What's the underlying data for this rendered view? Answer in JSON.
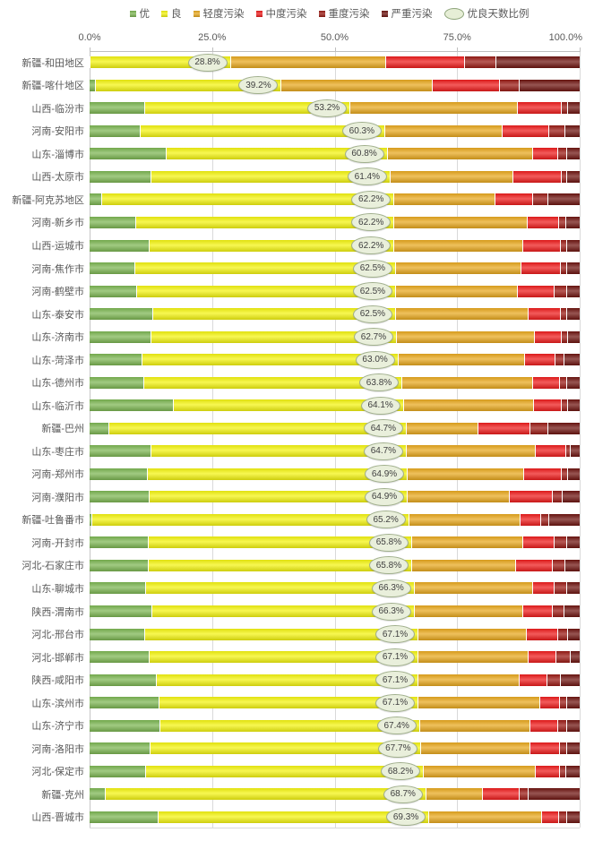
{
  "colors": {
    "excellent": "#7cb652",
    "good": "#f4f410",
    "light_pollution": "#e8a81e",
    "moderate_pollution": "#ee1c1c",
    "heavy_pollution": "#9a1a14",
    "severe_pollution": "#6e1410",
    "bubble_fill": "#e9efdb",
    "bubble_border": "#a0af8c",
    "gridline": "#d9d9d9",
    "text": "#595959"
  },
  "legend": {
    "items": [
      {
        "label": "优",
        "key": "excellent"
      },
      {
        "label": "良",
        "key": "good"
      },
      {
        "label": "轻度污染",
        "key": "light_pollution"
      },
      {
        "label": "中度污染",
        "key": "moderate_pollution"
      },
      {
        "label": "重度污染",
        "key": "heavy_pollution"
      },
      {
        "label": "严重污染",
        "key": "severe_pollution"
      }
    ],
    "ratio_label": "优良天数比例"
  },
  "chart_data": {
    "type": "bar",
    "stacked": true,
    "orientation": "horizontal",
    "unit": "%",
    "xlim": [
      0,
      100
    ],
    "x_ticks": [
      {
        "value": 0,
        "label": "0.0%"
      },
      {
        "value": 25,
        "label": "25.0%"
      },
      {
        "value": 50,
        "label": "50.0%"
      },
      {
        "value": 75,
        "label": "75.0%"
      },
      {
        "value": 100,
        "label": "100.0%"
      }
    ],
    "grid": true,
    "legend_position": "top",
    "categories": [
      "新疆-和田地区",
      "新疆-喀什地区",
      "山西-临汾市",
      "河南-安阳市",
      "山东-淄博市",
      "山西-太原市",
      "新疆-阿克苏地区",
      "河南-新乡市",
      "山西-运城市",
      "河南-焦作市",
      "河南-鹤壁市",
      "山东-泰安市",
      "山东-济南市",
      "山东-菏泽市",
      "山东-德州市",
      "山东-临沂市",
      "新疆-巴州",
      "山东-枣庄市",
      "河南-郑州市",
      "河南-濮阳市",
      "新疆-吐鲁番市",
      "河南-开封市",
      "河北-石家庄市",
      "山东-聊城市",
      "陕西-渭南市",
      "河北-邢台市",
      "河北-邯郸市",
      "陕西-咸阳市",
      "山东-滨州市",
      "山东-济宁市",
      "河南-洛阳市",
      "河北-保定市",
      "新疆-克州",
      "山西-晋城市"
    ],
    "series": [
      {
        "name": "优",
        "key": "excellent",
        "values": [
          0.2,
          1.2,
          11.4,
          10.5,
          15.8,
          12.7,
          2.6,
          9.5,
          12.2,
          9.3,
          9.7,
          13.0,
          12.6,
          10.8,
          11.2,
          17.2,
          4.0,
          12.7,
          11.8,
          12.2,
          0.5,
          12.1,
          12.1,
          11.6,
          12.8,
          11.4,
          12.3,
          13.8,
          14.3,
          14.5,
          12.5,
          11.6,
          3.3,
          14.0
        ]
      },
      {
        "name": "良",
        "key": "good",
        "values": [
          28.6,
          38.0,
          41.8,
          49.8,
          45.0,
          48.7,
          59.6,
          52.7,
          50.0,
          53.2,
          52.8,
          49.5,
          50.1,
          52.2,
          52.6,
          46.9,
          60.7,
          52.0,
          53.1,
          52.7,
          64.7,
          53.7,
          53.7,
          54.7,
          53.5,
          55.7,
          54.8,
          53.3,
          52.8,
          52.9,
          55.2,
          56.6,
          65.4,
          55.3
        ]
      },
      {
        "name": "轻度污染",
        "key": "light_pollution",
        "values": [
          31.7,
          30.8,
          34.1,
          24.0,
          29.7,
          25.1,
          20.7,
          27.2,
          26.2,
          25.7,
          24.8,
          27.0,
          28.1,
          25.8,
          26.7,
          26.5,
          14.6,
          26.4,
          23.8,
          20.8,
          22.7,
          22.7,
          21.3,
          24.2,
          22.2,
          22.2,
          22.4,
          20.7,
          24.8,
          22.6,
          22.3,
          22.9,
          11.6,
          23.0
        ]
      },
      {
        "name": "中度污染",
        "key": "moderate_pollution",
        "values": [
          16.1,
          13.8,
          9.0,
          9.5,
          5.2,
          9.9,
          7.6,
          6.4,
          7.7,
          7.9,
          7.5,
          6.6,
          5.6,
          6.3,
          5.4,
          5.7,
          10.6,
          6.1,
          7.6,
          8.8,
          4.2,
          6.3,
          7.5,
          4.4,
          6.1,
          6.4,
          5.8,
          5.6,
          4.0,
          5.7,
          5.9,
          4.8,
          7.5,
          3.5
        ]
      },
      {
        "name": "重度污染",
        "key": "heavy_pollution",
        "values": [
          6.4,
          4.0,
          1.4,
          3.3,
          1.7,
          1.0,
          3.1,
          1.4,
          1.4,
          1.3,
          2.7,
          1.4,
          1.2,
          1.8,
          1.5,
          1.3,
          3.7,
          0.9,
          1.4,
          2.1,
          1.7,
          2.6,
          2.5,
          2.5,
          2.3,
          1.9,
          2.8,
          2.8,
          1.5,
          1.8,
          1.6,
          1.4,
          1.8,
          1.6
        ]
      },
      {
        "name": "严重污染",
        "key": "severe_pollution",
        "values": [
          17.0,
          12.2,
          2.3,
          2.9,
          2.6,
          2.6,
          6.4,
          2.8,
          2.5,
          2.6,
          2.5,
          2.5,
          2.4,
          3.1,
          2.6,
          2.4,
          6.4,
          1.9,
          2.3,
          3.4,
          6.2,
          2.6,
          2.9,
          2.6,
          3.1,
          2.4,
          1.9,
          3.8,
          2.6,
          2.5,
          2.5,
          2.7,
          10.4,
          2.6
        ]
      }
    ],
    "ratio": {
      "name": "优良天数比例",
      "values": [
        28.8,
        39.2,
        53.2,
        60.3,
        60.8,
        61.4,
        62.2,
        62.2,
        62.2,
        62.5,
        62.5,
        62.5,
        62.7,
        63.0,
        63.8,
        64.1,
        64.7,
        64.7,
        64.9,
        64.9,
        65.2,
        65.8,
        65.8,
        66.3,
        66.3,
        67.1,
        67.1,
        67.1,
        67.1,
        67.4,
        67.7,
        68.2,
        68.7,
        69.3
      ]
    }
  }
}
